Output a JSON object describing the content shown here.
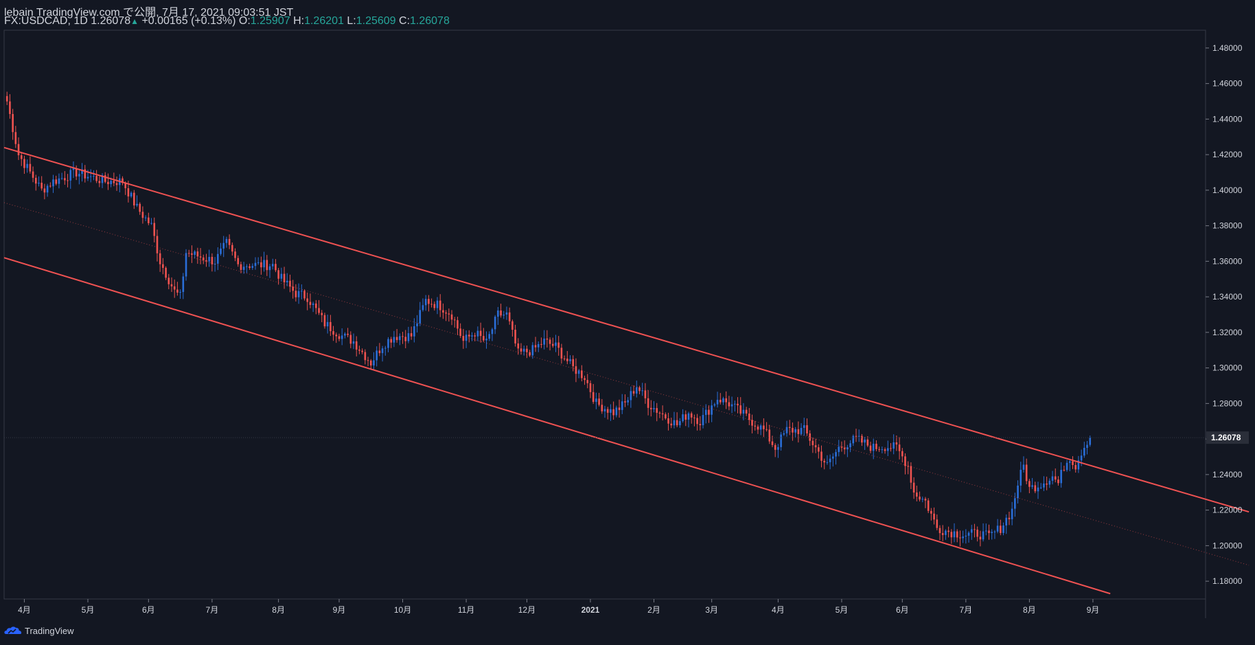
{
  "header": {
    "author": "lebain",
    "published_text": "TradingView.com で公開, 7月 17, 2021 09:03:51 JST",
    "symbol": "FX:USDCAD, 1D",
    "last": "1.26078",
    "change": "+0.00165 (+0.13%)",
    "open_label": "O:",
    "open": "1.25907",
    "high_label": "H:",
    "high": "1.26201",
    "low_label": "L:",
    "low": "1.25609",
    "close_label": "C:",
    "close": "1.26078"
  },
  "footer": {
    "brand": "TradingView"
  },
  "colors": {
    "background": "#131722",
    "up": "#2a6ed8",
    "down": "#ef5350",
    "channel": "#f05252",
    "text": "#d1d4dc",
    "accent": "#26a69a"
  },
  "chart_data": {
    "type": "candlestick",
    "symbol": "FX:USDCAD",
    "timeframe": "1D",
    "ylim": [
      1.17,
      1.49
    ],
    "y_ticks": [
      "1.48000",
      "1.46000",
      "1.44000",
      "1.42000",
      "1.40000",
      "1.38000",
      "1.36000",
      "1.34000",
      "1.32000",
      "1.30000",
      "1.28000",
      "1.26000",
      "1.24000",
      "1.22000",
      "1.20000",
      "1.18000"
    ],
    "current_price_label": "1.26078",
    "current_price": 1.26078,
    "x_ticks": [
      "4月",
      "5月",
      "6月",
      "7月",
      "8月",
      "9月",
      "10月",
      "11月",
      "12月",
      "2021",
      "2月",
      "3月",
      "4月",
      "5月",
      "6月",
      "7月",
      "8月",
      "9月"
    ],
    "anchors": [
      [
        0,
        1.45
      ],
      [
        4,
        1.42
      ],
      [
        12,
        1.4
      ],
      [
        16,
        1.405
      ],
      [
        24,
        1.41
      ],
      [
        34,
        1.405
      ],
      [
        40,
        1.405
      ],
      [
        45,
        1.39
      ],
      [
        50,
        1.38
      ],
      [
        53,
        1.36
      ],
      [
        58,
        1.343
      ],
      [
        60,
        1.34
      ],
      [
        62,
        1.365
      ],
      [
        72,
        1.36
      ],
      [
        76,
        1.37
      ],
      [
        80,
        1.358
      ],
      [
        88,
        1.358
      ],
      [
        92,
        1.358
      ],
      [
        95,
        1.35
      ],
      [
        100,
        1.342
      ],
      [
        104,
        1.34
      ],
      [
        110,
        1.325
      ],
      [
        116,
        1.318
      ],
      [
        120,
        1.315
      ],
      [
        126,
        1.303
      ],
      [
        130,
        1.313
      ],
      [
        134,
        1.318
      ],
      [
        140,
        1.318
      ],
      [
        145,
        1.338
      ],
      [
        150,
        1.335
      ],
      [
        154,
        1.33
      ],
      [
        158,
        1.315
      ],
      [
        162,
        1.32
      ],
      [
        166,
        1.314
      ],
      [
        170,
        1.33
      ],
      [
        173,
        1.33
      ],
      [
        177,
        1.308
      ],
      [
        182,
        1.31
      ],
      [
        186,
        1.315
      ],
      [
        190,
        1.312
      ],
      [
        196,
        1.3
      ],
      [
        200,
        1.295
      ],
      [
        204,
        1.28
      ],
      [
        210,
        1.275
      ],
      [
        214,
        1.28
      ],
      [
        218,
        1.29
      ],
      [
        222,
        1.28
      ],
      [
        226,
        1.275
      ],
      [
        232,
        1.268
      ],
      [
        236,
        1.275
      ],
      [
        240,
        1.27
      ],
      [
        246,
        1.283
      ],
      [
        250,
        1.28
      ],
      [
        254,
        1.275
      ],
      [
        258,
        1.27
      ],
      [
        262,
        1.265
      ],
      [
        266,
        1.255
      ],
      [
        270,
        1.265
      ],
      [
        276,
        1.265
      ],
      [
        280,
        1.255
      ],
      [
        284,
        1.245
      ],
      [
        288,
        1.255
      ],
      [
        294,
        1.26
      ],
      [
        300,
        1.255
      ],
      [
        304,
        1.256
      ],
      [
        308,
        1.255
      ],
      [
        312,
        1.245
      ],
      [
        314,
        1.23
      ],
      [
        318,
        1.225
      ],
      [
        322,
        1.21
      ],
      [
        326,
        1.208
      ],
      [
        332,
        1.206
      ],
      [
        336,
        1.207
      ],
      [
        340,
        1.205
      ],
      [
        344,
        1.21
      ],
      [
        348,
        1.22
      ],
      [
        350,
        1.235
      ],
      [
        352,
        1.245
      ],
      [
        354,
        1.232
      ],
      [
        358,
        1.235
      ],
      [
        362,
        1.239
      ],
      [
        364,
        1.235
      ],
      [
        366,
        1.245
      ],
      [
        368,
        1.25
      ],
      [
        370,
        1.245
      ],
      [
        372,
        1.253
      ],
      [
        374,
        1.2591
      ],
      [
        375,
        1.2608
      ]
    ],
    "channel_lines": [
      {
        "name": "upper-channel-line",
        "start": [
          -1,
          1.424
        ],
        "end": [
          430,
          1.219
        ],
        "style": "solid"
      },
      {
        "name": "lower-channel-line",
        "start": [
          -1,
          1.362
        ],
        "end": [
          382,
          1.173
        ],
        "style": "solid"
      },
      {
        "name": "mid-channel-line",
        "start": [
          -1,
          1.393
        ],
        "end": [
          430,
          1.189
        ],
        "style": "dotted"
      }
    ],
    "x_day_range": [
      -1,
      415
    ],
    "month_tick_days": [
      6,
      28,
      49,
      71,
      94,
      115,
      137,
      159,
      180,
      202,
      224,
      244,
      267,
      289,
      310,
      332,
      354,
      376
    ]
  }
}
